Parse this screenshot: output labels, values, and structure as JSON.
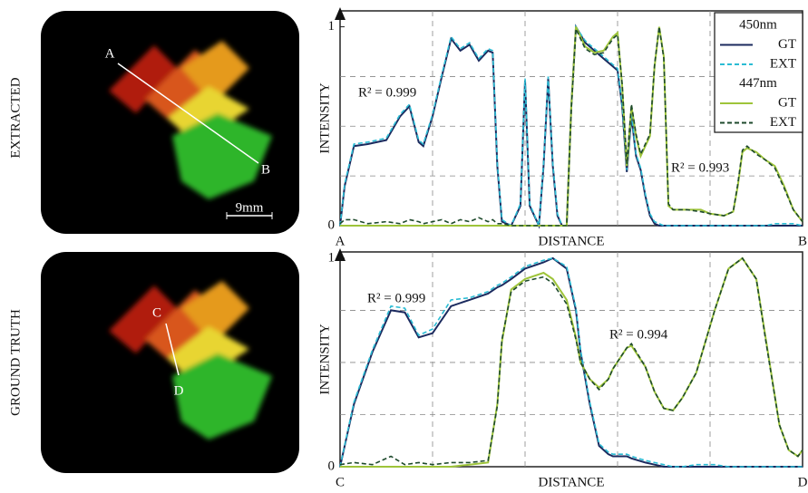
{
  "panels": [
    {
      "label": "EXTRACTED",
      "markers": [
        "A",
        "B"
      ],
      "scale_bar": "9mm"
    },
    {
      "label": "GROUND TRUTH",
      "markers": [
        "C",
        "D"
      ]
    }
  ],
  "chart_data": [
    {
      "type": "line",
      "xlabel": "DISTANCE",
      "ylabel": "INTENSITY",
      "x": [
        0,
        1,
        3,
        6,
        10,
        13,
        15,
        17,
        18,
        20,
        22,
        24,
        26,
        28,
        30,
        32,
        33,
        34,
        35,
        37,
        39,
        40,
        41,
        43,
        44,
        45,
        46,
        47,
        48,
        49,
        50,
        51,
        53,
        55,
        57,
        59,
        60,
        61,
        62,
        63,
        64,
        65,
        66,
        67,
        68,
        69,
        70,
        71,
        72,
        75,
        78,
        80,
        83,
        85,
        86,
        87,
        88,
        90,
        92,
        94,
        96,
        98,
        100
      ],
      "xlim": [
        0,
        100
      ],
      "xticks": [
        {
          "value": 0,
          "label": "A"
        },
        {
          "value": 100,
          "label": "B"
        }
      ],
      "minor_xticks": [
        20,
        40,
        60,
        80
      ],
      "ylim": [
        0,
        1.08
      ],
      "yticks": [
        0,
        1
      ],
      "minor_yticks": [
        0.25,
        0.5,
        0.75
      ],
      "grid": true,
      "legend": "upper right",
      "series": [
        {
          "group": "450nm",
          "name": "GT",
          "color": "#1b2a5e",
          "line_style": "solid",
          "values": [
            0,
            0.2,
            0.4,
            0.41,
            0.43,
            0.55,
            0.6,
            0.42,
            0.4,
            0.55,
            0.75,
            0.94,
            0.88,
            0.91,
            0.83,
            0.88,
            0.87,
            0.3,
            0.02,
            0,
            0.1,
            0.73,
            0.1,
            0,
            0.3,
            0.74,
            0.3,
            0.05,
            0,
            0,
            0.6,
            1.0,
            0.92,
            0.88,
            0.84,
            0.8,
            0.78,
            0.6,
            0.27,
            0.55,
            0.35,
            0.28,
            0.15,
            0.05,
            0.01,
            0,
            0,
            0,
            0,
            0,
            0,
            0,
            0,
            0,
            0,
            0,
            0,
            0,
            0,
            0,
            0,
            0,
            0
          ]
        },
        {
          "group": "450nm",
          "name": "EXT",
          "color": "#2bbcd4",
          "line_style": "dashed",
          "values": [
            0,
            0.21,
            0.41,
            0.42,
            0.44,
            0.56,
            0.61,
            0.43,
            0.41,
            0.56,
            0.76,
            0.95,
            0.89,
            0.92,
            0.84,
            0.89,
            0.88,
            0.31,
            0.03,
            0,
            0.11,
            0.74,
            0.11,
            0,
            0.31,
            0.75,
            0.31,
            0.06,
            0,
            0,
            0.61,
            1.0,
            0.93,
            0.89,
            0.85,
            0.81,
            0.79,
            0.61,
            0.28,
            0.56,
            0.36,
            0.29,
            0.16,
            0.06,
            0.02,
            0.01,
            0,
            0,
            0,
            0,
            0,
            0,
            0,
            0,
            0,
            0,
            0,
            0,
            0,
            0.01,
            0.01,
            0.01,
            0
          ]
        },
        {
          "group": "447nm",
          "name": "GT",
          "color": "#9ec43a",
          "line_style": "solid",
          "values": [
            0,
            0,
            0,
            0,
            0,
            0,
            0,
            0,
            0,
            0,
            0,
            0,
            0,
            0,
            0,
            0,
            0,
            0,
            0,
            0,
            0,
            0,
            0,
            0,
            0,
            0,
            0,
            0,
            0,
            0,
            0.6,
            1.0,
            0.9,
            0.87,
            0.88,
            0.95,
            0.97,
            0.7,
            0.3,
            0.6,
            0.45,
            0.35,
            0.4,
            0.45,
            0.8,
            1.0,
            0.85,
            0.1,
            0.08,
            0.08,
            0.08,
            0.06,
            0.05,
            0.07,
            0.2,
            0.37,
            0.39,
            0.37,
            0.33,
            0.3,
            0.2,
            0.08,
            0.02
          ]
        },
        {
          "group": "447nm",
          "name": "EXT",
          "color": "#1e4a2c",
          "line_style": "dashed",
          "values": [
            0.01,
            0.03,
            0.03,
            0.01,
            0.02,
            0.01,
            0.03,
            0.02,
            0.01,
            0.02,
            0.03,
            0.01,
            0.03,
            0.02,
            0.04,
            0.02,
            0.03,
            0.01,
            0.01,
            0,
            0,
            0,
            0,
            0,
            0,
            0,
            0,
            0,
            0,
            0,
            0.59,
            0.99,
            0.89,
            0.86,
            0.87,
            0.94,
            0.96,
            0.71,
            0.31,
            0.61,
            0.46,
            0.36,
            0.41,
            0.46,
            0.81,
            1.0,
            0.84,
            0.11,
            0.08,
            0.08,
            0.07,
            0.06,
            0.05,
            0.07,
            0.21,
            0.38,
            0.4,
            0.36,
            0.33,
            0.29,
            0.19,
            0.08,
            0.02
          ]
        }
      ],
      "annotations": [
        "R² = 0.999",
        "R² = 0.993"
      ]
    },
    {
      "type": "line",
      "xlabel": "DISTANCE",
      "ylabel": "INTENSITY",
      "x": [
        0,
        3,
        7,
        11,
        14,
        17,
        20,
        24,
        28,
        32,
        34,
        35,
        37,
        40,
        44,
        46,
        49,
        51,
        52,
        54,
        56,
        58,
        59,
        62,
        63,
        66,
        68,
        70,
        72,
        74,
        77,
        81,
        84,
        87,
        90,
        92,
        95,
        97,
        99,
        100
      ],
      "xlim": [
        0,
        100
      ],
      "xticks": [
        {
          "value": 0,
          "label": "C"
        },
        {
          "value": 100,
          "label": "D"
        }
      ],
      "minor_xticks": [
        20,
        40,
        60,
        80
      ],
      "ylim": [
        0,
        1.03
      ],
      "yticks": [
        0,
        1
      ],
      "minor_yticks": [
        0.25,
        0.5,
        0.75
      ],
      "grid": true,
      "series": [
        {
          "group": "450nm",
          "name": "GT",
          "color": "#1b2a5e",
          "line_style": "solid",
          "values": [
            0,
            0.3,
            0.55,
            0.75,
            0.74,
            0.62,
            0.64,
            0.77,
            0.8,
            0.83,
            0.86,
            0.87,
            0.9,
            0.95,
            0.98,
            1.0,
            0.95,
            0.75,
            0.55,
            0.3,
            0.1,
            0.06,
            0.05,
            0.05,
            0.04,
            0.02,
            0.01,
            0,
            0,
            0,
            0,
            0,
            0,
            0,
            0,
            0,
            0,
            0,
            0,
            0
          ]
        },
        {
          "group": "450nm",
          "name": "EXT",
          "color": "#2bbcd4",
          "line_style": "dashed",
          "values": [
            0,
            0.31,
            0.56,
            0.77,
            0.76,
            0.63,
            0.66,
            0.8,
            0.81,
            0.84,
            0.87,
            0.88,
            0.91,
            0.96,
            0.99,
            1.0,
            0.96,
            0.76,
            0.56,
            0.31,
            0.11,
            0.07,
            0.06,
            0.06,
            0.05,
            0.03,
            0.02,
            0.01,
            0,
            0,
            0.01,
            0.01,
            0,
            0,
            0,
            0,
            0,
            0,
            0,
            0
          ]
        },
        {
          "group": "447nm",
          "name": "GT",
          "color": "#9ec43a",
          "line_style": "solid",
          "values": [
            0,
            0,
            0,
            0,
            0,
            0,
            0,
            0,
            0.01,
            0.02,
            0.3,
            0.6,
            0.85,
            0.9,
            0.93,
            0.9,
            0.8,
            0.62,
            0.5,
            0.42,
            0.38,
            0.42,
            0.47,
            0.57,
            0.58,
            0.48,
            0.36,
            0.28,
            0.27,
            0.33,
            0.45,
            0.75,
            0.95,
            1.0,
            0.9,
            0.62,
            0.2,
            0.08,
            0.05,
            0.08
          ]
        },
        {
          "group": "447nm",
          "name": "EXT",
          "color": "#1e4a2c",
          "line_style": "dashed",
          "values": [
            0.01,
            0.02,
            0.01,
            0.05,
            0.01,
            0.02,
            0.01,
            0.02,
            0.02,
            0.03,
            0.29,
            0.61,
            0.84,
            0.89,
            0.91,
            0.88,
            0.78,
            0.61,
            0.5,
            0.42,
            0.37,
            0.42,
            0.47,
            0.57,
            0.59,
            0.48,
            0.36,
            0.28,
            0.27,
            0.33,
            0.45,
            0.75,
            0.95,
            1.0,
            0.9,
            0.61,
            0.2,
            0.08,
            0.05,
            0.08
          ]
        }
      ],
      "annotations": [
        "R² = 0.999",
        "R² = 0.994"
      ]
    }
  ]
}
